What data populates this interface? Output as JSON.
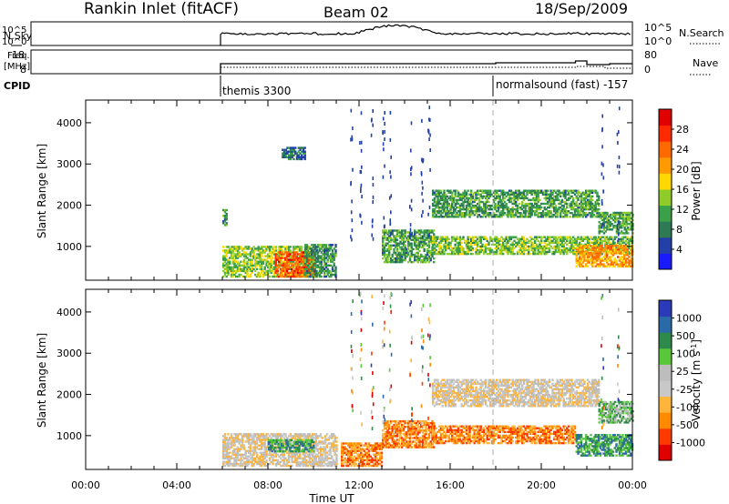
{
  "header": {
    "title": "Rankin Inlet (fitACF)",
    "beam": "Beam 02",
    "date": "18/Sep/2009"
  },
  "noise_panel": {
    "left_label": "N.Sky",
    "right_label": "N.Search",
    "left_ticks": [
      "10^5",
      "10^0"
    ],
    "right_ticks": [
      "10^5",
      "10^0"
    ]
  },
  "freq_panel": {
    "left_label_1": "Freq.",
    "left_label_2": "[MHz]",
    "right_label": "Nave",
    "left_ticks": [
      "18",
      "8"
    ],
    "right_ticks": [
      "80",
      "0"
    ]
  },
  "cpid": {
    "label": "CPID",
    "modes": [
      {
        "start": "06:00",
        "text": "themis 3300"
      },
      {
        "start": "18:00",
        "text": "normalsound (fast) -157"
      }
    ]
  },
  "colors": {
    "power": [
      "#1a1aff",
      "#2340a8",
      "#2e7a55",
      "#3aa04a",
      "#8fcc2a",
      "#ffd800",
      "#ff9a00",
      "#ff6a00",
      "#ff2a00",
      "#e00000"
    ],
    "velocity": [
      "#e00000",
      "#ff3a00",
      "#ff8a00",
      "#ffb43a",
      "#c8c8c8",
      "#bdbdbd",
      "#58c83a",
      "#2e8a4a",
      "#2a6aa8",
      "#2a3ab8"
    ]
  },
  "chart_data": [
    {
      "type": "heatmap",
      "name": "power",
      "ylabel": "Slant Range [km]",
      "yticks": [
        1000,
        2000,
        3000,
        4000
      ],
      "ylim": [
        180,
        4550
      ],
      "xlim": [
        "00:00",
        "24:00"
      ],
      "colorbar": {
        "label": "Power [dB]",
        "ticks": [
          "4",
          "8",
          "12",
          "16",
          "20",
          "24",
          "28"
        ],
        "range": [
          0,
          32
        ]
      },
      "regions": [
        {
          "t": [
            6.0,
            10.2
          ],
          "r": [
            250,
            1000
          ],
          "v": 14
        },
        {
          "t": [
            8.3,
            10.0
          ],
          "r": [
            250,
            850
          ],
          "v": 26
        },
        {
          "t": [
            9.6,
            11.0
          ],
          "r": [
            250,
            1050
          ],
          "v": 9
        },
        {
          "t": [
            6.0,
            6.2
          ],
          "r": [
            1500,
            1900
          ],
          "v": 8
        },
        {
          "t": [
            8.6,
            9.6
          ],
          "r": [
            3100,
            3400
          ],
          "v": 7
        },
        {
          "t": [
            13.0,
            15.3
          ],
          "r": [
            600,
            1400
          ],
          "v": 10
        },
        {
          "t": [
            15.2,
            22.5
          ],
          "r": [
            1700,
            2350
          ],
          "v": 10
        },
        {
          "t": [
            15.2,
            24.0
          ],
          "r": [
            800,
            1250
          ],
          "v": 13
        },
        {
          "t": [
            21.5,
            24.0
          ],
          "r": [
            500,
            1000
          ],
          "v": 22
        },
        {
          "t": [
            22.5,
            24.0
          ],
          "r": [
            1300,
            1800
          ],
          "v": 11
        }
      ]
    },
    {
      "type": "heatmap",
      "name": "velocity",
      "ylabel": "Slant Range [km]",
      "xlabel": "Time UT",
      "yticks": [
        1000,
        2000,
        3000,
        4000
      ],
      "ylim": [
        180,
        4550
      ],
      "xlim": [
        "00:00",
        "24:00"
      ],
      "xticks": [
        "00:00",
        "04:00",
        "08:00",
        "12:00",
        "16:00",
        "20:00",
        "00:00"
      ],
      "colorbar": {
        "label": "Velocity [m s^-1]",
        "ticks": [
          "1000",
          "500",
          "100",
          "25",
          "-25",
          "-100",
          "-500",
          "-1000"
        ]
      },
      "regions": [
        {
          "t": [
            6.0,
            11.0
          ],
          "r": [
            250,
            1050
          ],
          "v": 4
        },
        {
          "t": [
            8.0,
            10.0
          ],
          "r": [
            600,
            900
          ],
          "v": 7
        },
        {
          "t": [
            11.2,
            13.0
          ],
          "r": [
            250,
            800
          ],
          "v": 2
        },
        {
          "t": [
            13.0,
            15.3
          ],
          "r": [
            700,
            1350
          ],
          "v": 2
        },
        {
          "t": [
            15.2,
            22.5
          ],
          "r": [
            1700,
            2350
          ],
          "v": 4
        },
        {
          "t": [
            15.2,
            21.5
          ],
          "r": [
            800,
            1250
          ],
          "v": 2
        },
        {
          "t": [
            21.5,
            24.0
          ],
          "r": [
            500,
            1000
          ],
          "v": 7
        },
        {
          "t": [
            22.5,
            24.0
          ],
          "r": [
            1300,
            1800
          ],
          "v": 6
        }
      ]
    }
  ]
}
